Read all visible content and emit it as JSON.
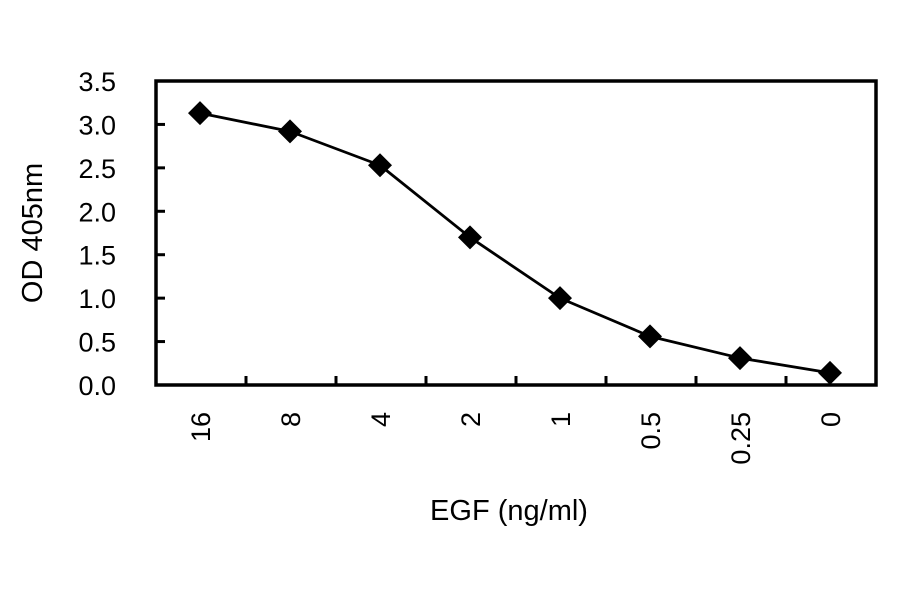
{
  "chart_data": {
    "type": "line",
    "title": "",
    "xlabel": "EGF (ng/ml)",
    "ylabel": "OD 405nm",
    "categories": [
      "16",
      "8",
      "4",
      "2",
      "1",
      "0.5",
      "0.25",
      "0"
    ],
    "series": [
      {
        "name": "OD 405nm",
        "marker": "diamond",
        "color": "#000000",
        "values": [
          3.13,
          2.92,
          2.53,
          1.7,
          1.0,
          0.56,
          0.31,
          0.14
        ]
      }
    ],
    "ylim": [
      0.0,
      3.5
    ],
    "yticks": [
      "0.0",
      "0.5",
      "1.0",
      "1.5",
      "2.0",
      "2.5",
      "3.0",
      "3.5"
    ],
    "grid": false,
    "legend": null
  }
}
